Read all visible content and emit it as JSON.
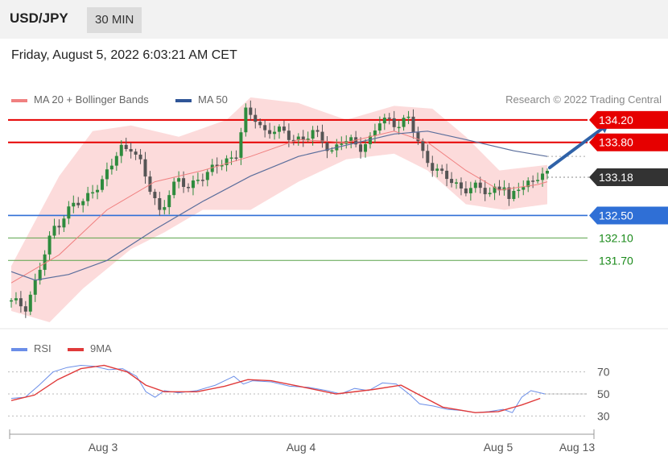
{
  "header": {
    "symbol": "USD/JPY",
    "timeframe": "30 MIN"
  },
  "datetime": "Friday, August 5, 2022 6:03:21 AM CET",
  "legend": {
    "ma20_label": "MA 20 + Bollinger Bands",
    "ma50_label": "MA 50",
    "copyright": "Research © 2022 Trading Central"
  },
  "rsi_legend": {
    "rsi_label": "RSI",
    "ma9_label": "9MA"
  },
  "colors": {
    "bull": "#2e8b3d",
    "bear": "#555555",
    "resistance": "#e60000",
    "support_blue": "#2f6fd6",
    "support_green": "#5aa34a",
    "current": "#333333",
    "band": "#fbd5d5",
    "ma20": "#f08080",
    "ma50": "#5b6e9c",
    "rsi": "#6b8ee8",
    "rsi_ma": "#e03a3a",
    "arrow": "#2f62a8"
  },
  "chart_data": [
    {
      "type": "candlestick",
      "title": "USD/JPY 30 MIN",
      "x_labels": [
        "Aug 3",
        "Aug 4",
        "Aug 5",
        "Aug 13"
      ],
      "ylim": [
        130.6,
        134.9
      ],
      "levels": [
        {
          "value": 134.2,
          "label": "134.20",
          "kind": "resistance"
        },
        {
          "value": 133.8,
          "label": "133.80",
          "kind": "resistance"
        },
        {
          "value": 133.18,
          "label": "133.18",
          "kind": "current"
        },
        {
          "value": 132.5,
          "label": "132.50",
          "kind": "support"
        },
        {
          "value": 132.1,
          "label": "132.10",
          "kind": "support"
        },
        {
          "value": 131.7,
          "label": "131.70",
          "kind": "support"
        }
      ],
      "close_path": [
        [
          0,
          130.94
        ],
        [
          3,
          130.9
        ],
        [
          5,
          131.3
        ],
        [
          7,
          131.8
        ],
        [
          9,
          132.3
        ],
        [
          11,
          132.5
        ],
        [
          13,
          132.7
        ],
        [
          15,
          132.7
        ],
        [
          17,
          133.0
        ],
        [
          19,
          133.1
        ],
        [
          21,
          133.4
        ],
        [
          23,
          133.7
        ],
        [
          25,
          133.75
        ],
        [
          27,
          133.4
        ],
        [
          29,
          132.95
        ],
        [
          31,
          132.6
        ],
        [
          33,
          132.9
        ],
        [
          35,
          133.1
        ],
        [
          37,
          133.0
        ],
        [
          39,
          133.2
        ],
        [
          41,
          133.2
        ],
        [
          43,
          133.4
        ],
        [
          45,
          133.5
        ],
        [
          47,
          133.6
        ],
        [
          49,
          134.3
        ],
        [
          51,
          134.25
        ],
        [
          53,
          134.0
        ],
        [
          55,
          134.0
        ],
        [
          57,
          133.95
        ],
        [
          59,
          133.9
        ],
        [
          61,
          133.85
        ],
        [
          63,
          133.95
        ],
        [
          65,
          133.85
        ],
        [
          67,
          133.65
        ],
        [
          69,
          133.8
        ],
        [
          71,
          133.8
        ],
        [
          73,
          133.75
        ],
        [
          75,
          133.85
        ],
        [
          77,
          134.15
        ],
        [
          79,
          134.2
        ],
        [
          81,
          134.15
        ],
        [
          83,
          134.2
        ],
        [
          85,
          133.8
        ],
        [
          86,
          133.6
        ],
        [
          88,
          133.4
        ],
        [
          90,
          133.2
        ],
        [
          92,
          133.1
        ],
        [
          94,
          133.0
        ],
        [
          96,
          133.0
        ],
        [
          98,
          132.95
        ],
        [
          100,
          132.9
        ],
        [
          101,
          133.0
        ],
        [
          103,
          133.05
        ],
        [
          104,
          132.7
        ],
        [
          106,
          133.0
        ],
        [
          108,
          133.1
        ],
        [
          110,
          133.2
        ],
        [
          112,
          133.18
        ]
      ],
      "ma20_path": [
        [
          0,
          131.3
        ],
        [
          10,
          131.8
        ],
        [
          20,
          132.6
        ],
        [
          30,
          133.1
        ],
        [
          40,
          133.3
        ],
        [
          50,
          133.55
        ],
        [
          60,
          133.85
        ],
        [
          70,
          133.8
        ],
        [
          80,
          134.0
        ],
        [
          87,
          133.8
        ],
        [
          95,
          133.3
        ],
        [
          102,
          132.95
        ],
        [
          110,
          133.05
        ],
        [
          112,
          133.1
        ]
      ],
      "ma50_path": [
        [
          0,
          131.5
        ],
        [
          5,
          131.35
        ],
        [
          12,
          131.45
        ],
        [
          20,
          131.7
        ],
        [
          30,
          132.25
        ],
        [
          40,
          132.75
        ],
        [
          50,
          133.2
        ],
        [
          60,
          133.55
        ],
        [
          70,
          133.75
        ],
        [
          80,
          133.95
        ],
        [
          87,
          134.0
        ],
        [
          95,
          133.85
        ],
        [
          105,
          133.65
        ],
        [
          112,
          133.55
        ]
      ],
      "bollinger_upper": [
        [
          0,
          131.6
        ],
        [
          10,
          133.2
        ],
        [
          17,
          134.0
        ],
        [
          25,
          134.1
        ],
        [
          35,
          133.9
        ],
        [
          45,
          134.2
        ],
        [
          50,
          134.6
        ],
        [
          60,
          134.5
        ],
        [
          70,
          134.2
        ],
        [
          80,
          134.45
        ],
        [
          88,
          134.4
        ],
        [
          95,
          133.9
        ],
        [
          102,
          133.3
        ],
        [
          112,
          133.4
        ]
      ],
      "bollinger_lower": [
        [
          0,
          130.8
        ],
        [
          8,
          130.6
        ],
        [
          15,
          131.2
        ],
        [
          25,
          131.9
        ],
        [
          32,
          132.2
        ],
        [
          40,
          132.6
        ],
        [
          50,
          132.6
        ],
        [
          60,
          133.1
        ],
        [
          70,
          133.5
        ],
        [
          80,
          133.6
        ],
        [
          87,
          133.3
        ],
        [
          95,
          132.7
        ],
        [
          103,
          132.6
        ],
        [
          112,
          132.7
        ]
      ],
      "forecast_arrow": {
        "from": [
          112.5,
          133.35
        ],
        "to": [
          125,
          134.15
        ]
      }
    },
    {
      "type": "line",
      "title": "RSI",
      "ylim": [
        20,
        80
      ],
      "y_ticks": [
        70,
        50,
        30
      ],
      "series": [
        {
          "name": "RSI",
          "points": [
            [
              0,
              46
            ],
            [
              3,
              47
            ],
            [
              6,
              58
            ],
            [
              9,
              70
            ],
            [
              12,
              74
            ],
            [
              15,
              76
            ],
            [
              18,
              75
            ],
            [
              21,
              72
            ],
            [
              24,
              73
            ],
            [
              27,
              66
            ],
            [
              29,
              52
            ],
            [
              31,
              47
            ],
            [
              33,
              53
            ],
            [
              36,
              51
            ],
            [
              40,
              53
            ],
            [
              44,
              58
            ],
            [
              48,
              66
            ],
            [
              50,
              59
            ],
            [
              52,
              62
            ],
            [
              56,
              61
            ],
            [
              60,
              57
            ],
            [
              64,
              56
            ],
            [
              68,
              53
            ],
            [
              71,
              50
            ],
            [
              74,
              55
            ],
            [
              77,
              53
            ],
            [
              80,
              60
            ],
            [
              83,
              59
            ],
            [
              86,
              49
            ],
            [
              88,
              41
            ],
            [
              91,
              39
            ],
            [
              94,
              36
            ],
            [
              97,
              35
            ],
            [
              100,
              33
            ],
            [
              103,
              34
            ],
            [
              106,
              36
            ],
            [
              108,
              33
            ],
            [
              110,
              47
            ],
            [
              112,
              53
            ],
            [
              115,
              50
            ]
          ]
        },
        {
          "name": "9MA",
          "points": [
            [
              0,
              44
            ],
            [
              5,
              49
            ],
            [
              10,
              63
            ],
            [
              15,
              73
            ],
            [
              20,
              76
            ],
            [
              25,
              70
            ],
            [
              29,
              58
            ],
            [
              33,
              52
            ],
            [
              40,
              52
            ],
            [
              46,
              57
            ],
            [
              51,
              63
            ],
            [
              56,
              62
            ],
            [
              62,
              57
            ],
            [
              70,
              50
            ],
            [
              78,
              54
            ],
            [
              84,
              58
            ],
            [
              88,
              49
            ],
            [
              93,
              38
            ],
            [
              100,
              33
            ],
            [
              105,
              34
            ],
            [
              110,
              40
            ],
            [
              114,
              46
            ]
          ]
        }
      ]
    }
  ]
}
